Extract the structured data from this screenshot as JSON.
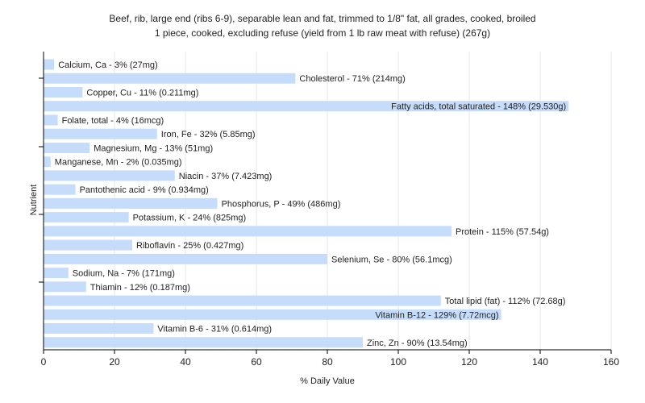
{
  "chart_data": {
    "type": "bar",
    "orientation": "horizontal",
    "title_lines": [
      "Beef, rib, large end (ribs 6-9), separable lean and fat, trimmed to 1/8\" fat, all grades, cooked, broiled",
      "1 piece, cooked, excluding refuse (yield from 1 lb raw meat with refuse) (267g)"
    ],
    "xlabel": "% Daily Value",
    "ylabel": "Nutrient",
    "xlim": [
      0,
      160
    ],
    "xticks": [
      "0",
      "20",
      "40",
      "60",
      "80",
      "100",
      "120",
      "140",
      "160"
    ],
    "grid": true,
    "bar_color": "#c6dcfb",
    "categories": [
      "Calcium, Ca",
      "Cholesterol",
      "Copper, Cu",
      "Fatty acids, total saturated",
      "Folate, total",
      "Iron, Fe",
      "Magnesium, Mg",
      "Manganese, Mn",
      "Niacin",
      "Pantothenic acid",
      "Phosphorus, P",
      "Potassium, K",
      "Protein",
      "Riboflavin",
      "Selenium, Se",
      "Sodium, Na",
      "Thiamin",
      "Total lipid (fat)",
      "Vitamin B-12",
      "Vitamin B-6",
      "Zinc, Zn"
    ],
    "values": [
      3,
      71,
      11,
      148,
      4,
      32,
      13,
      2,
      37,
      9,
      49,
      24,
      115,
      25,
      80,
      7,
      12,
      112,
      129,
      31,
      90
    ],
    "labels": [
      "Calcium, Ca - 3% (27mg)",
      "Cholesterol - 71% (214mg)",
      "Copper, Cu - 11% (0.211mg)",
      "Fatty acids, total saturated - 148% (29.530g)",
      "Folate, total - 4% (16mcg)",
      "Iron, Fe - 32% (5.85mg)",
      "Magnesium, Mg - 13% (51mg)",
      "Manganese, Mn - 2% (0.035mg)",
      "Niacin - 37% (7.423mg)",
      "Pantothenic acid - 9% (0.934mg)",
      "Phosphorus, P - 49% (486mg)",
      "Potassium, K - 24% (825mg)",
      "Protein - 115% (57.54g)",
      "Riboflavin - 25% (0.427mg)",
      "Selenium, Se - 80% (56.1mcg)",
      "Sodium, Na - 7% (171mg)",
      "Thiamin - 12% (0.187mg)",
      "Total lipid (fat) - 112% (72.68g)",
      "Vitamin B-12 - 129% (7.72mcg)",
      "Vitamin B-6 - 31% (0.614mg)",
      "Zinc, Zn - 90% (13.54mg)"
    ]
  }
}
